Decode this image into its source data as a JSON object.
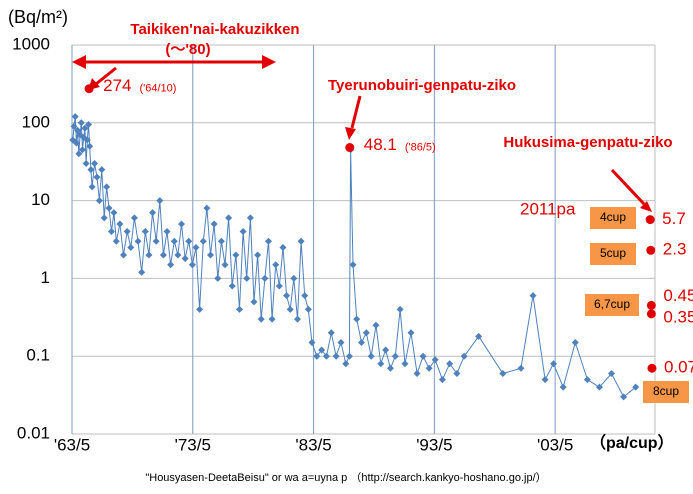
{
  "chart_data": {
    "type": "line",
    "y_unit": "(Bq/m²)",
    "x_unit": "（pa/cup）",
    "source": "\"Housyasen-DeetaBeisu\" or wa a=uyna p （http://search.kankyo-hoshano.go.jp/）",
    "log_y": true,
    "grid": true,
    "ylim": [
      0.01,
      1000
    ],
    "yticks": [
      0.01,
      0.1,
      1,
      10,
      100,
      1000
    ],
    "xlim": [
      1963.333,
      2011.6
    ],
    "xticks": [
      {
        "value": 1963.333,
        "label": "'63/5"
      },
      {
        "value": 1973.333,
        "label": "'73/5"
      },
      {
        "value": 1983.333,
        "label": "'83/5"
      },
      {
        "value": 1993.333,
        "label": "'93/5"
      },
      {
        "value": 2003.333,
        "label": "'03/5"
      }
    ],
    "series": [
      {
        "color": "#4f81bd",
        "x": [
          1963.4,
          1963.5,
          1963.6,
          1963.7,
          1963.8,
          1963.9,
          1964.0,
          1964.1,
          1964.2,
          1964.3,
          1964.4,
          1964.5,
          1964.6,
          1964.7,
          1964.8,
          1964.9,
          1965.0,
          1965.2,
          1965.4,
          1965.6,
          1965.8,
          1966.0,
          1966.2,
          1966.4,
          1966.6,
          1966.8,
          1967.0,
          1967.3,
          1967.6,
          1967.9,
          1968.2,
          1968.5,
          1968.8,
          1969.1,
          1969.4,
          1969.7,
          1970.0,
          1970.3,
          1970.6,
          1970.9,
          1971.2,
          1971.5,
          1971.8,
          1972.1,
          1972.4,
          1972.7,
          1973.0,
          1973.3,
          1973.6,
          1973.9,
          1974.2,
          1974.5,
          1974.8,
          1975.1,
          1975.4,
          1975.7,
          1976.0,
          1976.3,
          1976.6,
          1976.9,
          1977.2,
          1977.5,
          1977.8,
          1978.1,
          1978.4,
          1978.7,
          1979.0,
          1979.3,
          1979.6,
          1979.9,
          1980.2,
          1980.5,
          1980.8,
          1981.1,
          1981.4,
          1981.7,
          1982.0,
          1982.3,
          1982.6,
          1982.9,
          1983.2,
          1983.6,
          1984.0,
          1984.4,
          1984.8,
          1985.2,
          1985.6,
          1986.0,
          1986.3,
          1986.4,
          1986.6,
          1986.9,
          1987.3,
          1987.7,
          1988.1,
          1988.5,
          1988.9,
          1989.3,
          1989.7,
          1990.1,
          1990.5,
          1990.9,
          1991.4,
          1991.9,
          1992.4,
          1992.9,
          1993.4,
          1994.0,
          1994.6,
          1995.2,
          1995.8,
          1997.0,
          1999.0,
          2000.5,
          2001.5,
          2002.5,
          2003.2,
          2004.0,
          2005.0,
          2006.0,
          2007.0,
          2008.0,
          2009.0,
          2010.0
        ],
        "values": [
          60,
          90,
          120,
          55,
          80,
          40,
          70,
          100,
          45,
          65,
          85,
          30,
          60,
          95,
          50,
          25,
          15,
          30,
          20,
          10,
          25,
          6,
          15,
          8,
          4,
          7,
          3,
          5,
          2,
          4,
          2.5,
          6,
          3,
          1.2,
          4,
          2,
          7,
          3,
          10,
          2,
          4,
          1.5,
          3,
          2,
          5,
          1.8,
          3,
          1.5,
          2.5,
          0.4,
          3,
          8,
          2,
          5,
          1,
          3,
          1.5,
          6,
          0.8,
          2,
          0.4,
          4,
          1,
          6,
          0.5,
          2,
          0.3,
          1,
          3,
          0.3,
          1.5,
          0.8,
          2.5,
          0.6,
          0.4,
          1,
          0.3,
          3,
          0.6,
          0.4,
          0.15,
          0.1,
          0.12,
          0.1,
          0.2,
          0.1,
          0.15,
          0.08,
          0.1,
          45,
          1.5,
          0.3,
          0.15,
          0.2,
          0.1,
          0.25,
          0.08,
          0.12,
          0.07,
          0.1,
          0.4,
          0.08,
          0.2,
          0.06,
          0.1,
          0.07,
          0.09,
          0.05,
          0.08,
          0.06,
          0.1,
          0.18,
          0.06,
          0.07,
          0.6,
          0.05,
          0.08,
          0.04,
          0.15,
          0.05,
          0.04,
          0.06,
          0.03,
          0.04
        ]
      }
    ],
    "highlight_color": "#e00000",
    "highlights": [
      {
        "x": 1964.75,
        "value": 274,
        "note": "('64/10)"
      },
      {
        "x": 1986.33,
        "value": 48.1,
        "note": "('86/5)"
      },
      {
        "x": 2011.2,
        "value": 5.7
      },
      {
        "x": 2011.25,
        "value": 2.3
      },
      {
        "x": 2011.3,
        "value": 0.45
      },
      {
        "x": 2011.3,
        "value": 0.35
      },
      {
        "x": 2011.35,
        "value": 0.07
      }
    ],
    "annotations": [
      "Taikiken'nai-kakuzikken",
      "(～'80)",
      "Tyerunobuiri-genpatu-ziko",
      "Hukusima-genpatu-ziko",
      "2011pa"
    ],
    "cup_labels": [
      "4cup",
      "5cup",
      "6,7cup",
      "8cup"
    ]
  }
}
